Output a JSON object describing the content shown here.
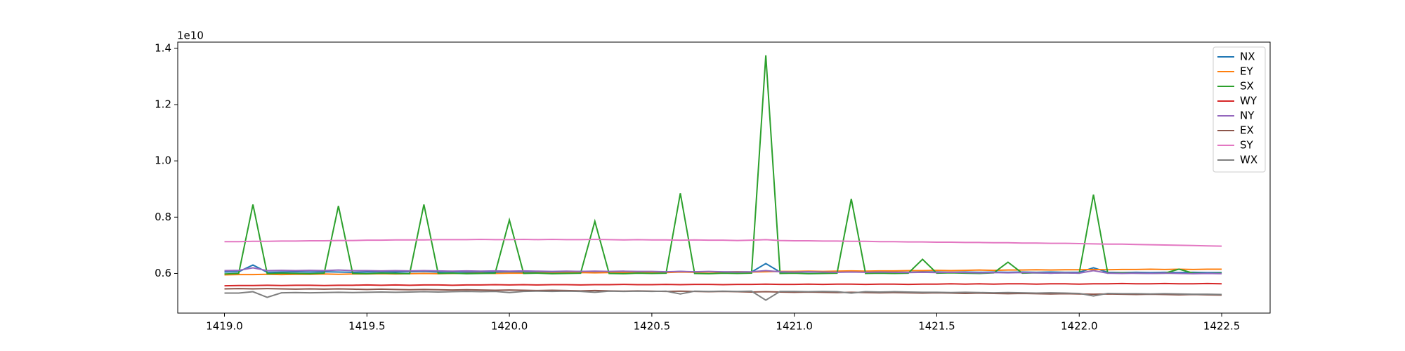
{
  "chart_data": {
    "type": "line",
    "y_offset_label": "1e10",
    "legend": "upper right",
    "xlim": [
      1418.836,
      1422.67
    ],
    "ylim": [
      0.459,
      1.422
    ],
    "xticks": [
      {
        "value": 1419,
        "label": "1419.0"
      },
      1419.5,
      {
        "value": 1420,
        "label": "1420.0"
      },
      1420.5,
      {
        "value": 1421,
        "label": "1421.0"
      },
      1421.5,
      {
        "value": 1422,
        "label": "1422.0"
      },
      1422.5
    ],
    "yticks": [
      0.6,
      0.8,
      {
        "value": 1,
        "label": "1.0"
      },
      1.2,
      1.4
    ],
    "x": [
      1419,
      1419.05,
      1419.1,
      1419.15,
      1419.2,
      1419.25,
      1419.3,
      1419.35,
      1419.4,
      1419.45,
      1419.5,
      1419.55,
      1419.6,
      1419.65,
      1419.7,
      1419.75,
      1419.8,
      1419.85,
      1419.9,
      1419.95,
      1420,
      1420.05,
      1420.1,
      1420.15,
      1420.2,
      1420.25,
      1420.3,
      1420.35,
      1420.4,
      1420.45,
      1420.5,
      1420.55,
      1420.6,
      1420.65,
      1420.7,
      1420.75,
      1420.8,
      1420.85,
      1420.9,
      1420.95,
      1421,
      1421.05,
      1421.1,
      1421.15,
      1421.2,
      1421.25,
      1421.3,
      1421.35,
      1421.4,
      1421.45,
      1421.5,
      1421.55,
      1421.6,
      1421.65,
      1421.7,
      1421.75,
      1421.8,
      1421.85,
      1421.9,
      1421.95,
      1422,
      1422.05,
      1422.1,
      1422.15,
      1422.2,
      1422.25,
      1422.3,
      1422.35,
      1422.4,
      1422.45,
      1422.5
    ],
    "series": [
      {
        "name": "NX",
        "color": "#1f77b4",
        "values": [
          0.605,
          0.606,
          0.63,
          0.604,
          0.605,
          0.606,
          0.605,
          0.606,
          0.605,
          0.604,
          0.605,
          0.606,
          0.605,
          0.606,
          0.607,
          0.605,
          0.606,
          0.605,
          0.604,
          0.605,
          0.606,
          0.605,
          0.606,
          0.605,
          0.606,
          0.607,
          0.606,
          0.605,
          0.606,
          0.605,
          0.606,
          0.605,
          0.607,
          0.605,
          0.606,
          0.605,
          0.606,
          0.605,
          0.635,
          0.605,
          0.606,
          0.605,
          0.606,
          0.605,
          0.607,
          0.605,
          0.606,
          0.605,
          0.604,
          0.605,
          0.605,
          0.604,
          0.605,
          0.604,
          0.605,
          0.604,
          0.605,
          0.604,
          0.605,
          0.604,
          0.604,
          0.62,
          0.604,
          0.603,
          0.604,
          0.603,
          0.604,
          0.603,
          0.604,
          0.603,
          0.603
        ]
      },
      {
        "name": "EY",
        "color": "#ff7f0e",
        "values": [
          0.595,
          0.596,
          0.596,
          0.597,
          0.596,
          0.597,
          0.597,
          0.598,
          0.597,
          0.598,
          0.598,
          0.599,
          0.598,
          0.599,
          0.6,
          0.599,
          0.6,
          0.6,
          0.601,
          0.6,
          0.601,
          0.601,
          0.602,
          0.601,
          0.602,
          0.603,
          0.602,
          0.603,
          0.603,
          0.604,
          0.604,
          0.603,
          0.605,
          0.604,
          0.605,
          0.605,
          0.606,
          0.605,
          0.606,
          0.607,
          0.607,
          0.608,
          0.607,
          0.608,
          0.609,
          0.608,
          0.609,
          0.609,
          0.61,
          0.61,
          0.611,
          0.61,
          0.611,
          0.612,
          0.611,
          0.612,
          0.612,
          0.613,
          0.612,
          0.613,
          0.613,
          0.614,
          0.613,
          0.614,
          0.614,
          0.615,
          0.614,
          0.615,
          0.614,
          0.615,
          0.615
        ]
      },
      {
        "name": "SX",
        "color": "#2ca02c",
        "values": [
          0.598,
          0.6,
          0.845,
          0.599,
          0.601,
          0.6,
          0.599,
          0.601,
          0.84,
          0.6,
          0.599,
          0.601,
          0.6,
          0.599,
          0.845,
          0.6,
          0.601,
          0.599,
          0.6,
          0.601,
          0.79,
          0.6,
          0.601,
          0.599,
          0.6,
          0.601,
          0.785,
          0.6,
          0.599,
          0.601,
          0.6,
          0.601,
          0.885,
          0.6,
          0.599,
          0.601,
          0.6,
          0.601,
          1.375,
          0.6,
          0.601,
          0.599,
          0.6,
          0.601,
          0.865,
          0.6,
          0.601,
          0.6,
          0.601,
          0.65,
          0.601,
          0.602,
          0.601,
          0.6,
          0.602,
          0.64,
          0.601,
          0.602,
          0.601,
          0.602,
          0.601,
          0.88,
          0.601,
          0.602,
          0.601,
          0.6,
          0.601,
          0.615,
          0.601,
          0.6,
          0.601
        ]
      },
      {
        "name": "WY",
        "color": "#d62728",
        "values": [
          0.556,
          0.557,
          0.557,
          0.558,
          0.557,
          0.558,
          0.558,
          0.557,
          0.558,
          0.558,
          0.559,
          0.558,
          0.559,
          0.558,
          0.559,
          0.559,
          0.558,
          0.559,
          0.559,
          0.56,
          0.559,
          0.56,
          0.559,
          0.56,
          0.56,
          0.559,
          0.56,
          0.56,
          0.561,
          0.56,
          0.56,
          0.561,
          0.56,
          0.561,
          0.561,
          0.56,
          0.561,
          0.561,
          0.562,
          0.561,
          0.561,
          0.562,
          0.561,
          0.562,
          0.562,
          0.561,
          0.562,
          0.562,
          0.561,
          0.562,
          0.562,
          0.563,
          0.562,
          0.563,
          0.562,
          0.563,
          0.563,
          0.562,
          0.563,
          0.563,
          0.562,
          0.563,
          0.563,
          0.564,
          0.563,
          0.563,
          0.564,
          0.563,
          0.563,
          0.564,
          0.563
        ]
      },
      {
        "name": "NY",
        "color": "#9467bd",
        "values": [
          0.61,
          0.611,
          0.62,
          0.61,
          0.611,
          0.61,
          0.611,
          0.61,
          0.612,
          0.61,
          0.61,
          0.609,
          0.61,
          0.609,
          0.61,
          0.609,
          0.608,
          0.609,
          0.608,
          0.609,
          0.608,
          0.609,
          0.608,
          0.607,
          0.608,
          0.607,
          0.608,
          0.607,
          0.608,
          0.607,
          0.607,
          0.606,
          0.607,
          0.606,
          0.607,
          0.606,
          0.605,
          0.606,
          0.61,
          0.606,
          0.605,
          0.606,
          0.605,
          0.604,
          0.605,
          0.604,
          0.605,
          0.604,
          0.603,
          0.604,
          0.603,
          0.604,
          0.603,
          0.602,
          0.603,
          0.602,
          0.603,
          0.602,
          0.601,
          0.602,
          0.601,
          0.61,
          0.601,
          0.6,
          0.601,
          0.6,
          0.601,
          0.6,
          0.599,
          0.6,
          0.599
        ]
      },
      {
        "name": "EX",
        "color": "#8c564b",
        "values": [
          0.545,
          0.546,
          0.545,
          0.546,
          0.545,
          0.544,
          0.545,
          0.544,
          0.545,
          0.544,
          0.543,
          0.544,
          0.543,
          0.542,
          0.543,
          0.542,
          0.541,
          0.542,
          0.541,
          0.54,
          0.541,
          0.54,
          0.539,
          0.54,
          0.539,
          0.538,
          0.539,
          0.538,
          0.537,
          0.538,
          0.537,
          0.536,
          0.537,
          0.536,
          0.535,
          0.536,
          0.535,
          0.534,
          0.535,
          0.534,
          0.533,
          0.534,
          0.533,
          0.532,
          0.533,
          0.532,
          0.531,
          0.532,
          0.531,
          0.53,
          0.531,
          0.53,
          0.529,
          0.53,
          0.529,
          0.528,
          0.529,
          0.528,
          0.527,
          0.528,
          0.527,
          0.526,
          0.527,
          0.526,
          0.525,
          0.526,
          0.525,
          0.524,
          0.525,
          0.524,
          0.523
        ]
      },
      {
        "name": "SY",
        "color": "#e377c2",
        "values": [
          0.713,
          0.713,
          0.714,
          0.714,
          0.715,
          0.715,
          0.716,
          0.716,
          0.717,
          0.717,
          0.718,
          0.718,
          0.719,
          0.719,
          0.719,
          0.72,
          0.72,
          0.72,
          0.721,
          0.72,
          0.72,
          0.721,
          0.72,
          0.721,
          0.72,
          0.72,
          0.721,
          0.72,
          0.719,
          0.72,
          0.719,
          0.719,
          0.718,
          0.719,
          0.718,
          0.718,
          0.717,
          0.718,
          0.72,
          0.717,
          0.716,
          0.716,
          0.715,
          0.715,
          0.714,
          0.714,
          0.713,
          0.713,
          0.712,
          0.712,
          0.711,
          0.711,
          0.71,
          0.71,
          0.709,
          0.709,
          0.708,
          0.708,
          0.707,
          0.707,
          0.706,
          0.705,
          0.704,
          0.704,
          0.703,
          0.702,
          0.701,
          0.7,
          0.699,
          0.698,
          0.697
        ]
      },
      {
        "name": "WX",
        "color": "#7f7f7f",
        "values": [
          0.53,
          0.53,
          0.535,
          0.515,
          0.531,
          0.532,
          0.531,
          0.532,
          0.533,
          0.532,
          0.533,
          0.534,
          0.533,
          0.534,
          0.535,
          0.534,
          0.535,
          0.536,
          0.535,
          0.536,
          0.532,
          0.536,
          0.537,
          0.536,
          0.537,
          0.536,
          0.533,
          0.537,
          0.536,
          0.537,
          0.536,
          0.537,
          0.527,
          0.537,
          0.536,
          0.537,
          0.536,
          0.537,
          0.505,
          0.536,
          0.536,
          0.535,
          0.536,
          0.535,
          0.53,
          0.535,
          0.534,
          0.535,
          0.534,
          0.533,
          0.533,
          0.532,
          0.533,
          0.532,
          0.531,
          0.532,
          0.531,
          0.53,
          0.531,
          0.53,
          0.529,
          0.52,
          0.529,
          0.528,
          0.528,
          0.527,
          0.528,
          0.527,
          0.526,
          0.526,
          0.525
        ]
      }
    ]
  }
}
